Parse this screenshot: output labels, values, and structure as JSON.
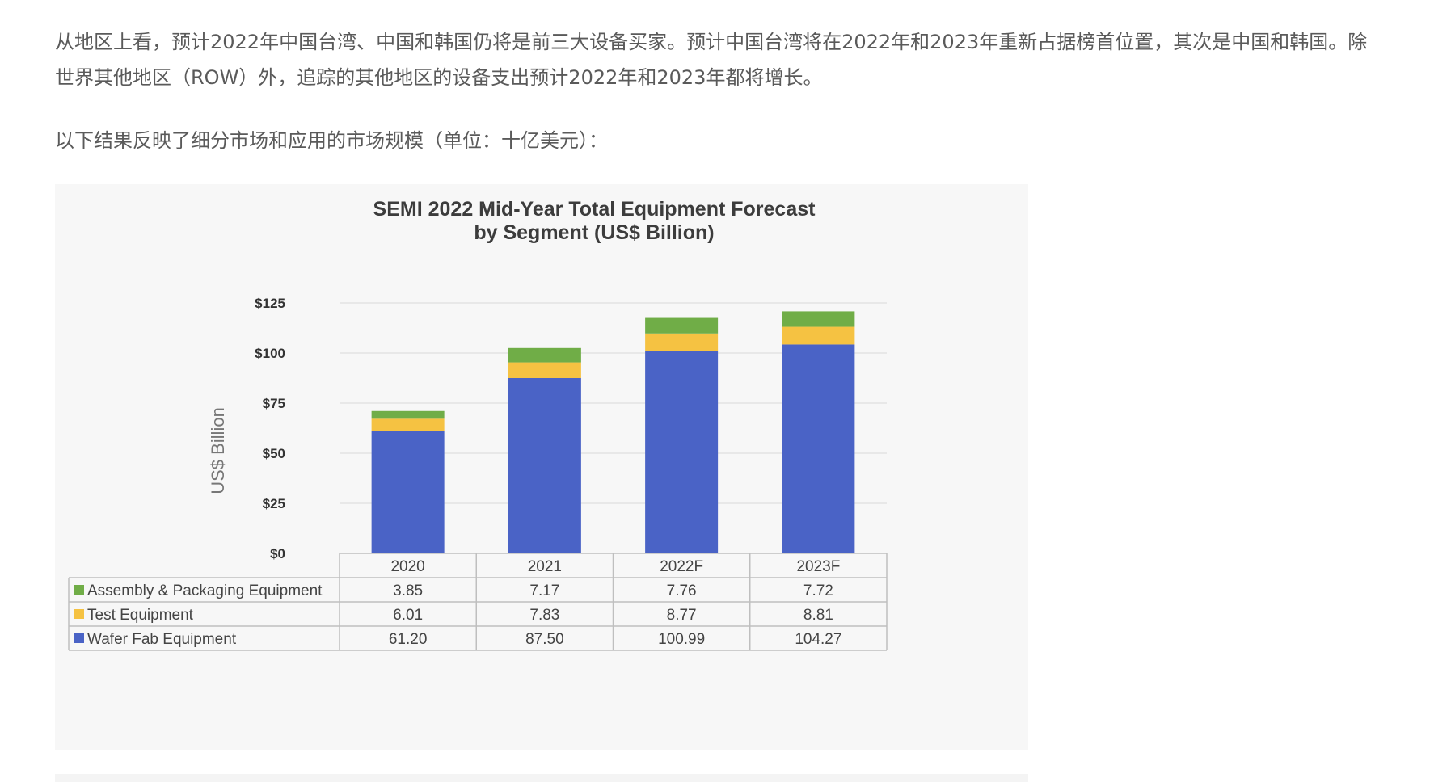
{
  "article": {
    "para1": "从地区上看，预计2022年中国台湾、中国和韩国仍将是前三大设备买家。预计中国台湾将在2022年和2023年重新占据榜首位置，其次是中国和韩国。除世界其他地区（ROW）外，追踪的其他地区的设备支出预计2022年和2023年都将增长。",
    "para2": "以下结果反映了细分市场和应用的市场规模（单位：十亿美元）："
  },
  "chart_data": {
    "type": "bar",
    "stacked": true,
    "title_line1": "SEMI 2022 Mid-Year Total Equipment Forecast",
    "title_line2": "by Segment (US$ Billion)",
    "ylabel": "US$ Billion",
    "ylim": [
      0,
      125
    ],
    "yticks": [
      "$0",
      "$25",
      "$50",
      "$75",
      "$100",
      "$125"
    ],
    "grid": true,
    "legend": "data table below chart",
    "categories": [
      "2020",
      "2021",
      "2022F",
      "2023F"
    ],
    "series": [
      {
        "name": "Wafer Fab Equipment",
        "color": "#4a63c6",
        "values": [
          61.2,
          87.5,
          100.99,
          104.27
        ],
        "labels": [
          "61.20",
          "87.50",
          "100.99",
          "104.27"
        ]
      },
      {
        "name": "Test Equipment",
        "color": "#f5c242",
        "values": [
          6.01,
          7.83,
          8.77,
          8.81
        ],
        "labels": [
          "6.01",
          "7.83",
          "8.77",
          "8.81"
        ]
      },
      {
        "name": "Assembly & Packaging Equipment",
        "color": "#70ad47",
        "values": [
          3.85,
          7.17,
          7.76,
          7.72
        ],
        "labels": [
          "3.85",
          "7.17",
          "7.76",
          "7.72"
        ]
      }
    ],
    "table_order": [
      "Assembly & Packaging Equipment",
      "Test Equipment",
      "Wafer Fab Equipment"
    ]
  }
}
